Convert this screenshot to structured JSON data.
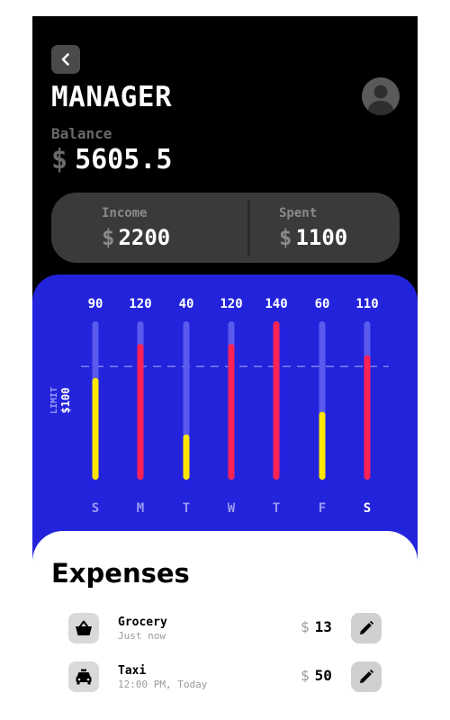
{
  "header": {
    "title": "MANAGER",
    "balance_label": "Balance",
    "currency": "$",
    "balance": "5605.5"
  },
  "stats": {
    "income_label": "Income",
    "income_value": "2200",
    "spent_label": "Spent",
    "spent_value": "1100"
  },
  "limit": {
    "label": "LIMIT",
    "value": "$100"
  },
  "colors": {
    "panel": "#2323dc",
    "track": "#5a5aef",
    "over_limit": "#ff2255",
    "under_limit": "#ffe600"
  },
  "chart_data": {
    "type": "bar",
    "categories": [
      "S",
      "M",
      "T",
      "W",
      "T",
      "F",
      "S"
    ],
    "values": [
      90,
      120,
      40,
      120,
      140,
      60,
      110
    ],
    "value_labels": [
      "90",
      "120",
      "40",
      "120",
      "140",
      "60",
      "110"
    ],
    "limit": 100,
    "ylim": [
      0,
      140
    ],
    "highlighted_day_index": 6
  },
  "expenses": {
    "title": "Expenses",
    "items": [
      {
        "name": "Grocery",
        "time": "Just now",
        "amount": "13",
        "icon": "shopping-basket-icon"
      },
      {
        "name": "Taxi",
        "time": "12:00 PM, Today",
        "amount": "50",
        "icon": "car-icon"
      }
    ]
  }
}
